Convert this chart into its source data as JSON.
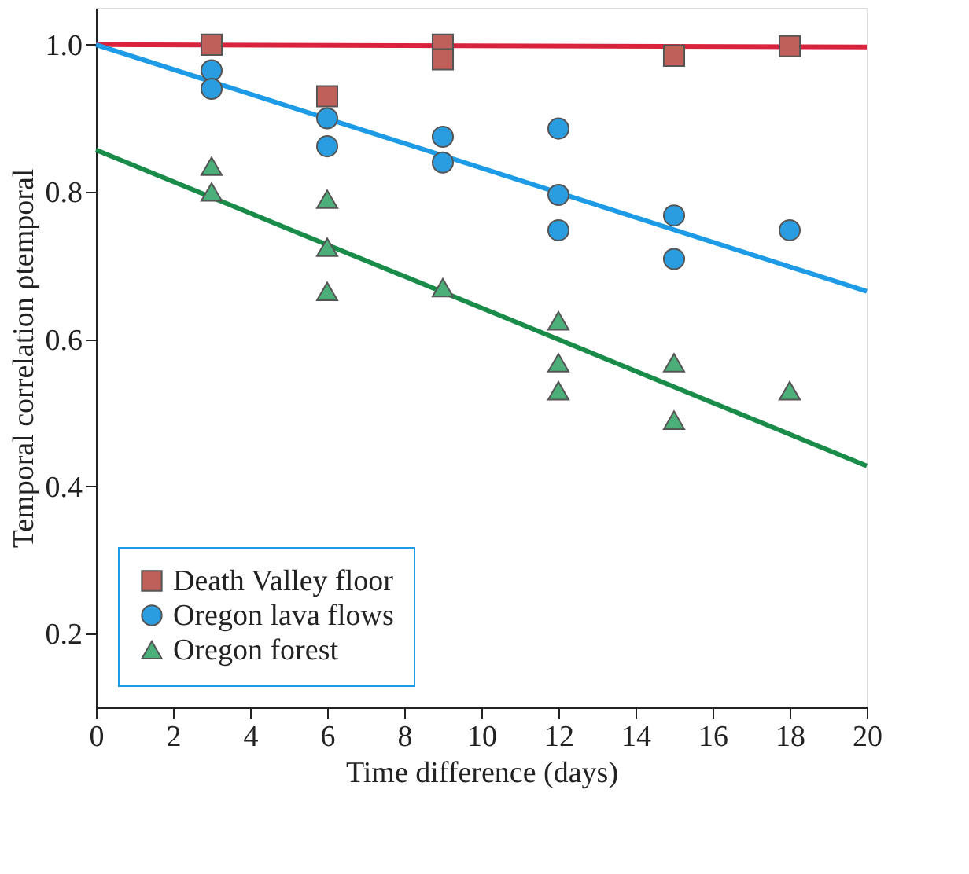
{
  "chart_data": {
    "type": "scatter",
    "xlabel": "Time difference (days)",
    "ylabel": "Temporal correlation ρtemporal",
    "xlim": [
      0,
      20
    ],
    "xticks": [
      0,
      2,
      4,
      6,
      8,
      10,
      12,
      14,
      16,
      18,
      20
    ],
    "ylim": [
      0.1,
      1.05
    ],
    "yticks": [
      {
        "value": 0.2,
        "label": "0.2"
      },
      {
        "value": 0.4,
        "label": "0.4"
      },
      {
        "value": 0.6,
        "label": "0.6"
      },
      {
        "value": 0.8,
        "label": "0.8"
      },
      {
        "value": 1.0,
        "label": "1.0"
      }
    ],
    "grid": false,
    "legend": "bottom left",
    "series": [
      {
        "type": "line",
        "color": "#d9233c",
        "x": [
          0,
          20
        ],
        "values": [
          1.0,
          0.997
        ]
      },
      {
        "type": "line",
        "color": "#1e9be6",
        "x": [
          0,
          20
        ],
        "values": [
          1.0,
          0.665
        ]
      },
      {
        "type": "line",
        "color": "#1a8c4a",
        "x": [
          0,
          20
        ],
        "values": [
          0.857,
          0.428
        ]
      },
      {
        "name": "Death Valley floor",
        "marker": "square",
        "color": "#c0605a",
        "x": [
          3,
          6,
          9,
          9,
          15,
          18
        ],
        "values": [
          1.0,
          0.93,
          1.0,
          0.98,
          0.985,
          0.998
        ]
      },
      {
        "name": "Oregon lava flows",
        "marker": "circle",
        "color": "#2a9de0",
        "x": [
          3,
          3,
          6,
          6,
          9,
          9,
          12,
          12,
          12,
          15,
          15,
          18
        ],
        "values": [
          0.965,
          0.94,
          0.9,
          0.862,
          0.875,
          0.84,
          0.886,
          0.796,
          0.748,
          0.768,
          0.709,
          0.748
        ]
      },
      {
        "name": "Oregon forest",
        "marker": "triangle",
        "color": "#4caf7a",
        "x": [
          3,
          3,
          6,
          6,
          6,
          9,
          12,
          12,
          12,
          15,
          15,
          18
        ],
        "values": [
          0.835,
          0.8,
          0.79,
          0.725,
          0.665,
          0.67,
          0.625,
          0.568,
          0.53,
          0.568,
          0.49,
          0.53
        ]
      }
    ]
  }
}
